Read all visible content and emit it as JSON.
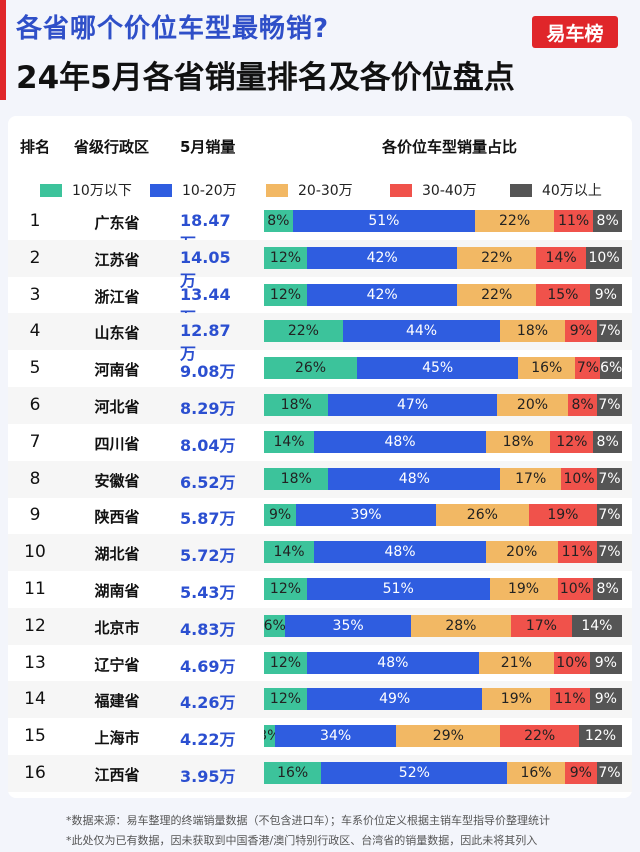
{
  "header": {
    "question": "各省哪个价位车型最畅销?",
    "title": "24年5月各省销量排名及各价位盘点",
    "logo": "易车榜"
  },
  "columns": {
    "rank": "排名",
    "province": "省级行政区",
    "sales": "5月销量",
    "share": "各价位车型销量占比"
  },
  "colors": [
    "#3cc39b",
    "#2f5de0",
    "#f2b864",
    "#f0524b",
    "#555555"
  ],
  "chart_data": {
    "type": "bar",
    "stacked": true,
    "orientation": "horizontal",
    "categories": [
      "广东省",
      "江苏省",
      "浙江省",
      "山东省",
      "河南省",
      "河北省",
      "四川省",
      "安徽省",
      "陕西省",
      "湖北省",
      "湖南省",
      "北京市",
      "辽宁省",
      "福建省",
      "上海市",
      "江西省"
    ],
    "ranks": [
      "1",
      "2",
      "3",
      "4",
      "5",
      "6",
      "7",
      "8",
      "9",
      "10",
      "11",
      "12",
      "13",
      "14",
      "15",
      "16"
    ],
    "sales": [
      "18.47万",
      "14.05万",
      "13.44万",
      "12.87万",
      "9.08万",
      "8.29万",
      "8.04万",
      "6.52万",
      "5.87万",
      "5.72万",
      "5.43万",
      "4.83万",
      "4.69万",
      "4.26万",
      "4.22万",
      "3.95万"
    ],
    "series": [
      {
        "name": "10万以下",
        "values": [
          8,
          12,
          12,
          22,
          26,
          18,
          14,
          18,
          9,
          14,
          12,
          6,
          12,
          12,
          3,
          16
        ]
      },
      {
        "name": "10-20万",
        "values": [
          51,
          42,
          42,
          44,
          45,
          47,
          48,
          48,
          39,
          48,
          51,
          35,
          48,
          49,
          34,
          52
        ]
      },
      {
        "name": "20-30万",
        "values": [
          22,
          22,
          22,
          18,
          16,
          20,
          18,
          17,
          26,
          20,
          19,
          28,
          21,
          19,
          29,
          16
        ]
      },
      {
        "name": "30-40万",
        "values": [
          11,
          14,
          15,
          9,
          7,
          8,
          12,
          10,
          19,
          11,
          10,
          17,
          10,
          11,
          22,
          9
        ]
      },
      {
        "name": "40万以上",
        "values": [
          8,
          10,
          9,
          7,
          6,
          7,
          8,
          7,
          7,
          7,
          8,
          14,
          9,
          9,
          12,
          7
        ]
      }
    ]
  },
  "footnotes": [
    "*数据来源：易车整理的终端销量数据（不包含进口车）；车系价位定义根据主销车型指导价整理统计",
    "*此处仅为已有数据，因未获取到中国香港/澳门特别行政区、台湾省的销量数据，因此未将其列入"
  ]
}
